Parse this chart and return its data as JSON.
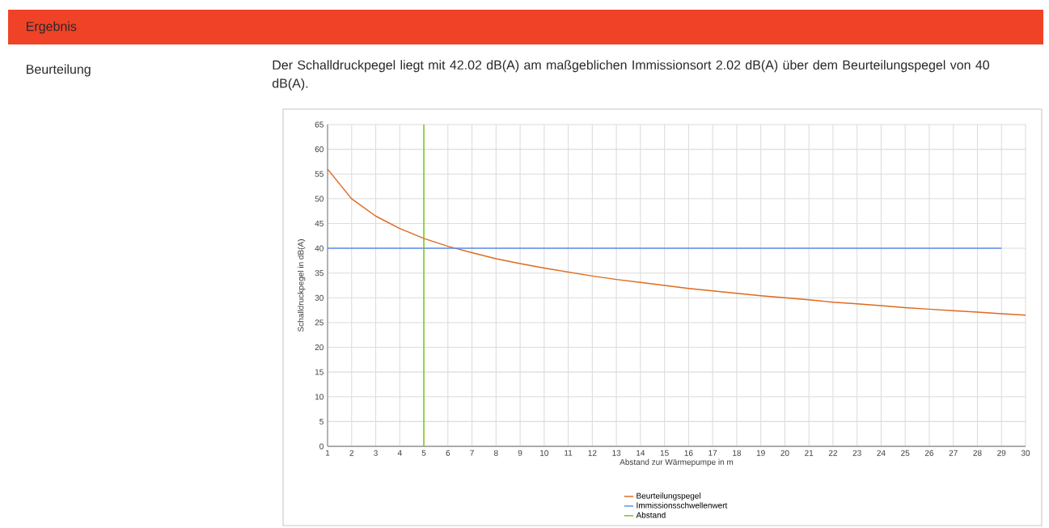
{
  "chart_data": {
    "type": "line",
    "title": "Ergebnis",
    "subtitle": "Beurteilung",
    "annotations": [
      "Der Schalldruckpegel liegt mit 42.02 dB(A) am maßgeblichen Immissionsort 2.02 dB(A) über dem Beurteilungspegel von 40 dB(A)."
    ],
    "xlabel": "Abstand zur Wärmepumpe in m",
    "ylabel": "Schalldruckpegel in dB(A)",
    "xlim": [
      1,
      30
    ],
    "xticks": [
      1,
      2,
      3,
      4,
      5,
      6,
      7,
      8,
      9,
      10,
      11,
      12,
      13,
      14,
      15,
      16,
      17,
      18,
      19,
      20,
      21,
      22,
      23,
      24,
      25,
      26,
      27,
      28,
      29,
      30
    ],
    "ylim": [
      0,
      65
    ],
    "yticks": [
      0,
      5,
      10,
      15,
      20,
      25,
      30,
      35,
      40,
      45,
      50,
      55,
      60,
      65
    ],
    "grid": true,
    "legend": "bottom",
    "series": [
      {
        "name": "Beurteilungspegel",
        "color": "#dd6a1f",
        "x": [
          1,
          2,
          3,
          4,
          5,
          6,
          7,
          8,
          9,
          10,
          11,
          12,
          13,
          14,
          15,
          16,
          17,
          18,
          19,
          20,
          21,
          22,
          23,
          24,
          25,
          26,
          27,
          28,
          29,
          30
        ],
        "values": [
          56,
          50,
          46.5,
          44,
          42,
          40.4,
          39.1,
          37.9,
          36.9,
          36,
          35.2,
          34.4,
          33.7,
          33.1,
          32.5,
          31.9,
          31.4,
          30.9,
          30.4,
          30,
          29.6,
          29.1,
          28.8,
          28.4,
          28,
          27.7,
          27.4,
          27.1,
          26.8,
          26.5
        ]
      },
      {
        "name": "Immissionsschwellenwert",
        "color": "#5b8def",
        "x": [
          1,
          29
        ],
        "values": [
          40,
          40
        ]
      },
      {
        "name": "Abstand",
        "color": "#7ac70c",
        "x": [
          5,
          5
        ],
        "values": [
          0,
          65
        ]
      }
    ]
  }
}
